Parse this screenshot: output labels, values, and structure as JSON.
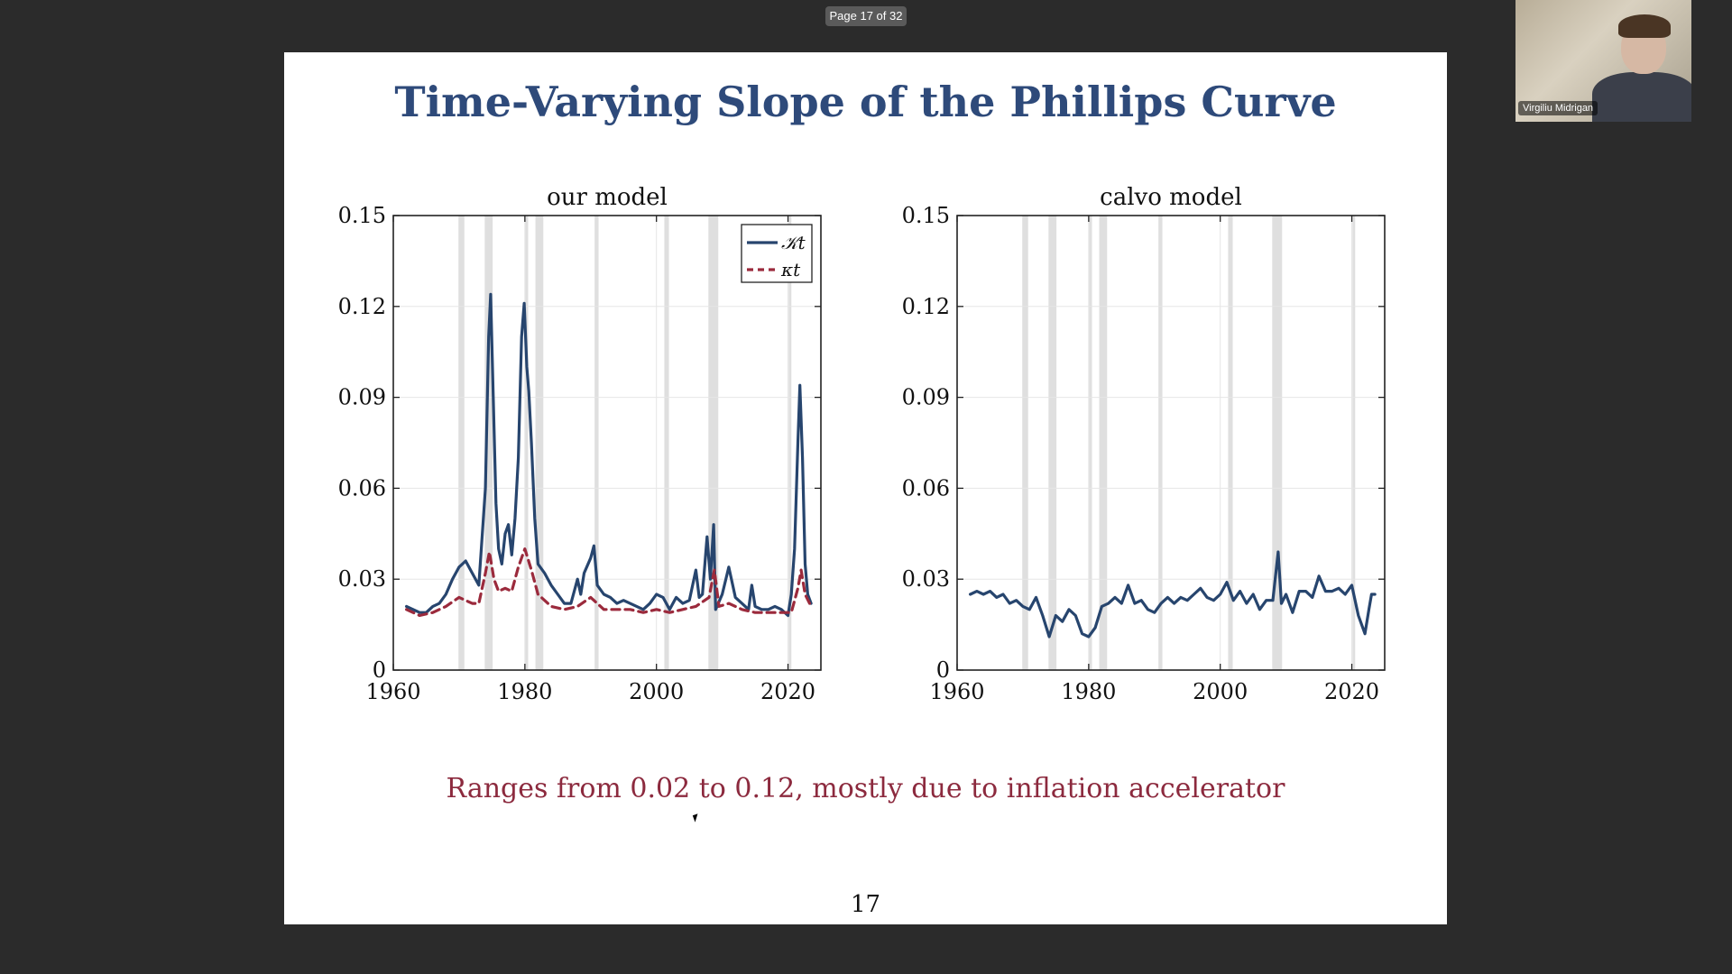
{
  "viewer": {
    "page_indicator": "Page 17 of 32"
  },
  "slide": {
    "title": "Time-Varying Slope of the Phillips Curve",
    "caption": "Ranges from 0.02 to 0.12, mostly due to inflation accelerator",
    "page_number": "17"
  },
  "participant": {
    "name": "Virgiliu Midrigan"
  },
  "colors": {
    "title": "#2e4a7a",
    "caption": "#8c2a3e",
    "series_blue": "#27456e",
    "series_red": "#9b2a3c",
    "recession_band": "#d9d9d9"
  },
  "chart_data": [
    {
      "type": "line",
      "title": "our model",
      "xlim": [
        1960,
        2025
      ],
      "ylim": [
        0,
        0.15
      ],
      "x_ticks": [
        1960,
        1980,
        2000,
        2020
      ],
      "y_ticks": [
        0,
        0.03,
        0.06,
        0.09,
        0.12,
        0.15
      ],
      "y_tick_labels": [
        "0",
        "0.03",
        "0.06",
        "0.09",
        "0.12",
        "0.15"
      ],
      "legend": {
        "placement": "top-right",
        "entries": [
          "𝒦t",
          "κt"
        ]
      },
      "recessions": [
        [
          1969.9,
          1970.8
        ],
        [
          1973.9,
          1975.1
        ],
        [
          1980.0,
          1980.5
        ],
        [
          1981.6,
          1982.8
        ],
        [
          1990.6,
          1991.2
        ],
        [
          2001.2,
          2001.9
        ],
        [
          2007.9,
          2009.4
        ],
        [
          2020.1,
          2020.4
        ]
      ],
      "series": [
        {
          "name": "𝒦t",
          "style": "solid",
          "color": "#27456e",
          "points": [
            [
              1962,
              0.021
            ],
            [
              1963,
              0.02
            ],
            [
              1964,
              0.019
            ],
            [
              1965,
              0.019
            ],
            [
              1966,
              0.021
            ],
            [
              1967,
              0.022
            ],
            [
              1968,
              0.025
            ],
            [
              1969,
              0.03
            ],
            [
              1970,
              0.034
            ],
            [
              1971,
              0.036
            ],
            [
              1972,
              0.032
            ],
            [
              1973,
              0.028
            ],
            [
              1974.0,
              0.06
            ],
            [
              1974.5,
              0.11
            ],
            [
              1974.8,
              0.124
            ],
            [
              1975.2,
              0.09
            ],
            [
              1975.6,
              0.055
            ],
            [
              1976,
              0.04
            ],
            [
              1976.5,
              0.035
            ],
            [
              1977,
              0.045
            ],
            [
              1977.5,
              0.048
            ],
            [
              1978,
              0.038
            ],
            [
              1978.5,
              0.05
            ],
            [
              1979,
              0.07
            ],
            [
              1979.5,
              0.11
            ],
            [
              1979.9,
              0.121
            ],
            [
              1980.3,
              0.1
            ],
            [
              1980.6,
              0.092
            ],
            [
              1981,
              0.075
            ],
            [
              1981.5,
              0.05
            ],
            [
              1982,
              0.035
            ],
            [
              1983,
              0.032
            ],
            [
              1984,
              0.028
            ],
            [
              1985,
              0.025
            ],
            [
              1986,
              0.022
            ],
            [
              1987,
              0.022
            ],
            [
              1988,
              0.03
            ],
            [
              1988.5,
              0.025
            ],
            [
              1989,
              0.032
            ],
            [
              1990,
              0.037
            ],
            [
              1990.5,
              0.041
            ],
            [
              1991,
              0.028
            ],
            [
              1992,
              0.025
            ],
            [
              1993,
              0.024
            ],
            [
              1994,
              0.022
            ],
            [
              1995,
              0.023
            ],
            [
              1996,
              0.022
            ],
            [
              1997,
              0.021
            ],
            [
              1998,
              0.02
            ],
            [
              1999,
              0.022
            ],
            [
              2000,
              0.025
            ],
            [
              2001,
              0.024
            ],
            [
              2002,
              0.02
            ],
            [
              2003,
              0.024
            ],
            [
              2004,
              0.022
            ],
            [
              2005,
              0.023
            ],
            [
              2006,
              0.033
            ],
            [
              2006.5,
              0.024
            ],
            [
              2007,
              0.025
            ],
            [
              2007.7,
              0.044
            ],
            [
              2008.2,
              0.03
            ],
            [
              2008.7,
              0.048
            ],
            [
              2009,
              0.02
            ],
            [
              2010,
              0.025
            ],
            [
              2011,
              0.034
            ],
            [
              2012,
              0.024
            ],
            [
              2013,
              0.022
            ],
            [
              2014,
              0.02
            ],
            [
              2014.5,
              0.028
            ],
            [
              2015,
              0.021
            ],
            [
              2016,
              0.02
            ],
            [
              2017,
              0.02
            ],
            [
              2018,
              0.021
            ],
            [
              2019,
              0.02
            ],
            [
              2020,
              0.018
            ],
            [
              2020.5,
              0.025
            ],
            [
              2021,
              0.04
            ],
            [
              2021.5,
              0.075
            ],
            [
              2021.8,
              0.094
            ],
            [
              2022.2,
              0.07
            ],
            [
              2022.6,
              0.035
            ],
            [
              2023,
              0.025
            ],
            [
              2023.5,
              0.022
            ]
          ]
        },
        {
          "name": "κt",
          "style": "dashed",
          "color": "#9b2a3c",
          "points": [
            [
              1962,
              0.02
            ],
            [
              1963,
              0.019
            ],
            [
              1964,
              0.018
            ],
            [
              1966,
              0.019
            ],
            [
              1968,
              0.021
            ],
            [
              1970,
              0.024
            ],
            [
              1972,
              0.022
            ],
            [
              1973,
              0.022
            ],
            [
              1974,
              0.032
            ],
            [
              1974.6,
              0.039
            ],
            [
              1975.3,
              0.03
            ],
            [
              1976,
              0.026
            ],
            [
              1977,
              0.027
            ],
            [
              1978,
              0.026
            ],
            [
              1979,
              0.034
            ],
            [
              1980,
              0.04
            ],
            [
              1981,
              0.033
            ],
            [
              1982,
              0.025
            ],
            [
              1984,
              0.021
            ],
            [
              1986,
              0.02
            ],
            [
              1988,
              0.021
            ],
            [
              1990,
              0.024
            ],
            [
              1992,
              0.02
            ],
            [
              1994,
              0.02
            ],
            [
              1996,
              0.02
            ],
            [
              1998,
              0.019
            ],
            [
              2000,
              0.02
            ],
            [
              2002,
              0.019
            ],
            [
              2004,
              0.02
            ],
            [
              2006,
              0.021
            ],
            [
              2008,
              0.024
            ],
            [
              2008.8,
              0.033
            ],
            [
              2009.5,
              0.021
            ],
            [
              2011,
              0.022
            ],
            [
              2013,
              0.02
            ],
            [
              2015,
              0.019
            ],
            [
              2017,
              0.019
            ],
            [
              2019,
              0.019
            ],
            [
              2020.5,
              0.019
            ],
            [
              2021.5,
              0.027
            ],
            [
              2022,
              0.033
            ],
            [
              2022.6,
              0.025
            ],
            [
              2023.5,
              0.021
            ]
          ]
        }
      ]
    },
    {
      "type": "line",
      "title": "calvo model",
      "xlim": [
        1960,
        2025
      ],
      "ylim": [
        0,
        0.15
      ],
      "x_ticks": [
        1960,
        1980,
        2000,
        2020
      ],
      "y_ticks": [
        0,
        0.03,
        0.06,
        0.09,
        0.12,
        0.15
      ],
      "y_tick_labels": [
        "0",
        "0.03",
        "0.06",
        "0.09",
        "0.12",
        "0.15"
      ],
      "recessions": [
        [
          1969.9,
          1970.8
        ],
        [
          1973.9,
          1975.1
        ],
        [
          1980.0,
          1980.5
        ],
        [
          1981.6,
          1982.8
        ],
        [
          1990.6,
          1991.2
        ],
        [
          2001.2,
          2001.9
        ],
        [
          2007.9,
          2009.4
        ],
        [
          2020.1,
          2020.4
        ]
      ],
      "series": [
        {
          "style": "solid",
          "color": "#27456e",
          "points": [
            [
              1962,
              0.025
            ],
            [
              1963,
              0.026
            ],
            [
              1964,
              0.025
            ],
            [
              1965,
              0.026
            ],
            [
              1966,
              0.024
            ],
            [
              1967,
              0.025
            ],
            [
              1968,
              0.022
            ],
            [
              1969,
              0.023
            ],
            [
              1970,
              0.021
            ],
            [
              1971,
              0.02
            ],
            [
              1972,
              0.024
            ],
            [
              1973,
              0.018
            ],
            [
              1974,
              0.011
            ],
            [
              1975,
              0.018
            ],
            [
              1976,
              0.016
            ],
            [
              1977,
              0.02
            ],
            [
              1978,
              0.018
            ],
            [
              1979,
              0.012
            ],
            [
              1980,
              0.011
            ],
            [
              1981,
              0.014
            ],
            [
              1982,
              0.021
            ],
            [
              1983,
              0.022
            ],
            [
              1984,
              0.024
            ],
            [
              1985,
              0.022
            ],
            [
              1986,
              0.028
            ],
            [
              1987,
              0.022
            ],
            [
              1988,
              0.023
            ],
            [
              1989,
              0.02
            ],
            [
              1990,
              0.019
            ],
            [
              1991,
              0.022
            ],
            [
              1992,
              0.024
            ],
            [
              1993,
              0.022
            ],
            [
              1994,
              0.024
            ],
            [
              1995,
              0.023
            ],
            [
              1996,
              0.025
            ],
            [
              1997,
              0.027
            ],
            [
              1998,
              0.024
            ],
            [
              1999,
              0.023
            ],
            [
              2000,
              0.025
            ],
            [
              2001,
              0.029
            ],
            [
              2002,
              0.023
            ],
            [
              2003,
              0.026
            ],
            [
              2004,
              0.022
            ],
            [
              2005,
              0.025
            ],
            [
              2006,
              0.02
            ],
            [
              2007,
              0.023
            ],
            [
              2008,
              0.023
            ],
            [
              2008.8,
              0.039
            ],
            [
              2009.3,
              0.022
            ],
            [
              2010,
              0.025
            ],
            [
              2011,
              0.019
            ],
            [
              2012,
              0.026
            ],
            [
              2013,
              0.026
            ],
            [
              2014,
              0.024
            ],
            [
              2015,
              0.031
            ],
            [
              2016,
              0.026
            ],
            [
              2017,
              0.026
            ],
            [
              2018,
              0.027
            ],
            [
              2019,
              0.025
            ],
            [
              2020,
              0.028
            ],
            [
              2021,
              0.018
            ],
            [
              2022,
              0.012
            ],
            [
              2022.6,
              0.02
            ],
            [
              2023,
              0.025
            ],
            [
              2023.5,
              0.025
            ]
          ]
        }
      ]
    }
  ]
}
